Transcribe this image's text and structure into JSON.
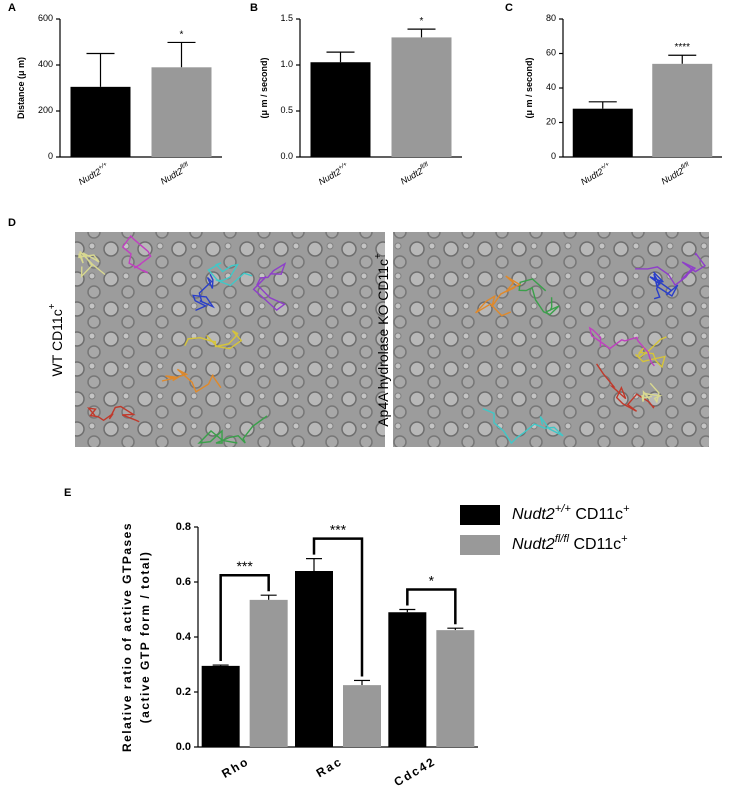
{
  "chart_data": [
    {
      "type": "bar",
      "panel": "A",
      "ylabel": "Distance (μ m)",
      "categories": [
        "Nudt2+/+",
        "Nudt2fl/fl"
      ],
      "values": [
        305,
        390
      ],
      "errors": [
        145,
        108
      ],
      "colors": [
        "#000000",
        "#999999"
      ],
      "annotations": [
        null,
        "*"
      ],
      "ylim": [
        0,
        600
      ],
      "yticks": [
        0,
        200,
        400,
        600
      ]
    },
    {
      "type": "bar",
      "panel": "B",
      "ylabel": "(μ m / second)",
      "categories": [
        "Nudt2+/+",
        "Nudt2fl/fl"
      ],
      "values": [
        1.03,
        1.3
      ],
      "errors": [
        0.11,
        0.09
      ],
      "colors": [
        "#000000",
        "#999999"
      ],
      "annotations": [
        null,
        "*"
      ],
      "ylim": [
        0,
        1.5
      ],
      "yticks": [
        {
          "value": 0,
          "label": "0.0"
        },
        0.5,
        {
          "value": 1,
          "label": "1.0"
        },
        1.5
      ]
    },
    {
      "type": "bar",
      "panel": "C",
      "ylabel": "(μ m / second)",
      "categories": [
        "Nudt2+/+",
        "Nudt2fl/fl"
      ],
      "values": [
        28,
        54
      ],
      "errors": [
        4,
        5
      ],
      "colors": [
        "#000000",
        "#999999"
      ],
      "annotations": [
        null,
        "****"
      ],
      "ylim": [
        0,
        80
      ],
      "yticks": [
        0,
        20,
        40,
        60,
        80
      ]
    },
    {
      "type": "grouped_bar",
      "panel": "E",
      "ylabel": [
        "Relative ratio of active GTPases",
        "(active GTP form / total)"
      ],
      "categories": [
        "Rho",
        "Rac",
        "Cdc42"
      ],
      "series": [
        {
          "name": "Nudt2+/+ CD11c+",
          "color": "#000000",
          "values": [
            0.295,
            0.64,
            0.49
          ],
          "errors": [
            0.003,
            0.045,
            0.01
          ]
        },
        {
          "name": "Nudt2fl/fl CD11c+",
          "color": "#999999",
          "values": [
            0.535,
            0.225,
            0.425
          ],
          "errors": [
            0.017,
            0.017,
            0.007
          ]
        }
      ],
      "annotations": [
        "***",
        "***",
        "*"
      ],
      "ylim": [
        0,
        0.8
      ],
      "yticks": [
        {
          "value": 0,
          "label": "0.0"
        },
        0.2,
        0.4,
        0.6,
        0.8
      ]
    }
  ],
  "image_panel": {
    "panel": "D",
    "captions": [
      "WT CD11c+",
      "Ap4A hydrolase KO CD11c+"
    ]
  }
}
